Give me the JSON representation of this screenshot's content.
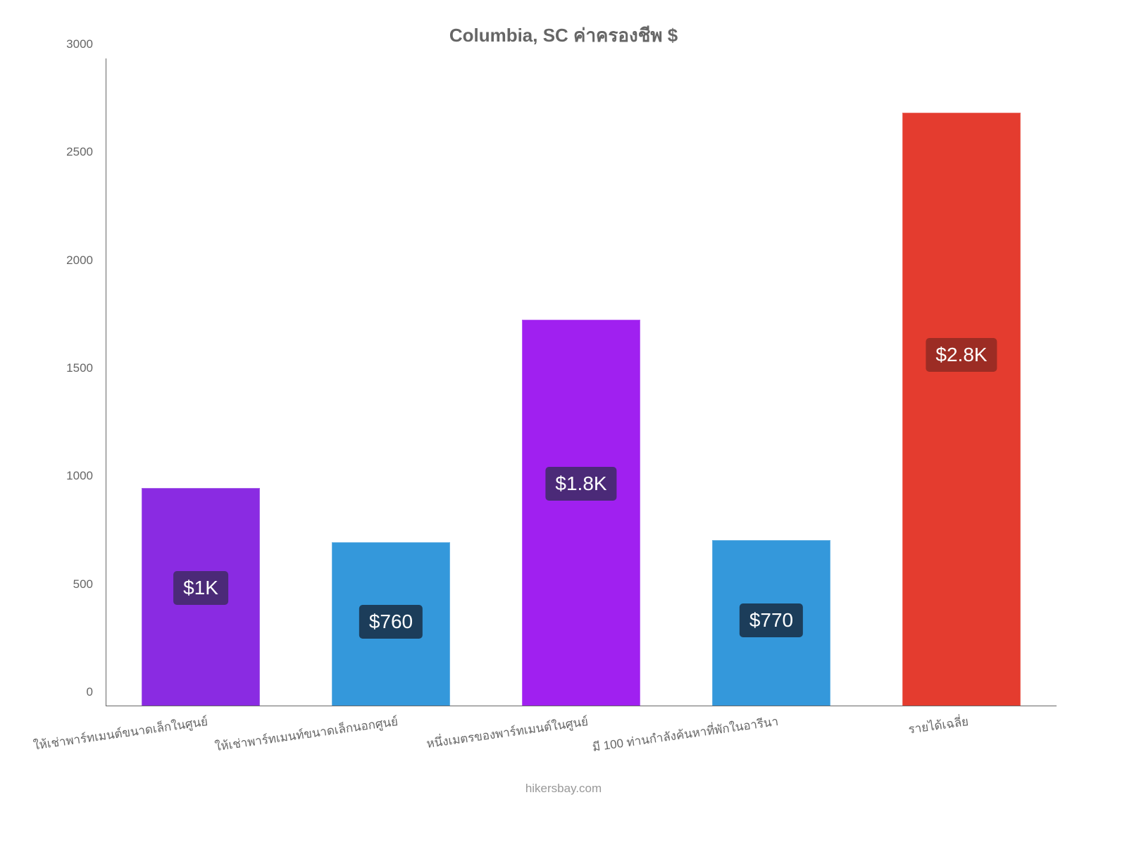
{
  "chart": {
    "type": "bar",
    "title": "Columbia, SC ค่าครองชีพ $",
    "title_color": "#666666",
    "title_fontsize": 26,
    "background_color": "#ffffff",
    "ylim": [
      0,
      3000
    ],
    "ytick_step": 500,
    "yticks": [
      "0",
      "500",
      "1000",
      "1500",
      "2000",
      "2500",
      "3000"
    ],
    "axis_color": "#666666",
    "label_fontsize": 17,
    "label_color": "#666666",
    "bar_width_ratio": 0.62,
    "bar_gap_ratio": 0.38,
    "bars": [
      {
        "category": "ให้เช่าพาร์ทเมนต์ขนาดเล็กในศูนย์",
        "value": 1010,
        "label": "$1K",
        "color": "#8a2be2",
        "badge_bg": "#4b2a78"
      },
      {
        "category": "ให้เช่าพาร์ทเมนท์ขนาดเล็กนอกศูนย์",
        "value": 760,
        "label": "$760",
        "color": "#3498db",
        "badge_bg": "#1c3d5a"
      },
      {
        "category": "หนึ่งเมตรของพาร์ทเมนต์ในศูนย์",
        "value": 1790,
        "label": "$1.8K",
        "color": "#a020f0",
        "badge_bg": "#4b2a78"
      },
      {
        "category": "มี 100 ท่านกำลังค้นหาที่พักในอารีนา",
        "value": 770,
        "label": "$770",
        "color": "#3498db",
        "badge_bg": "#1c3d5a"
      },
      {
        "category": "รายได้เฉลี่ย",
        "value": 2750,
        "label": "$2.8K",
        "color": "#e43c2f",
        "badge_bg": "#9c2c24"
      }
    ],
    "value_label_fontsize": 28,
    "value_label_color": "#ffffff",
    "attribution": "hikersbay.com",
    "attribution_color": "#999999"
  }
}
